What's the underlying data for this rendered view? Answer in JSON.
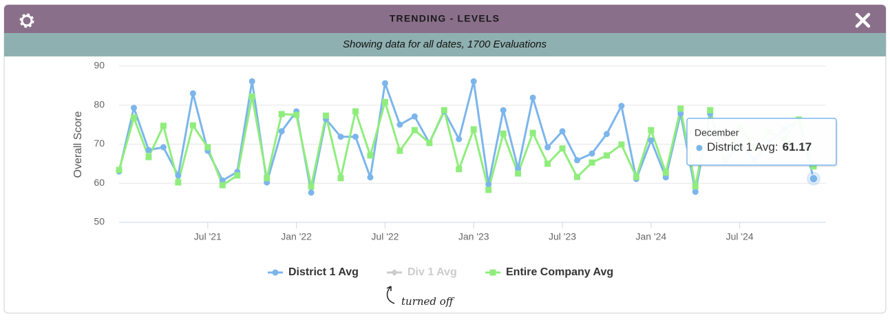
{
  "header": {
    "title": "TRENDING - LEVELS",
    "subtitle": "Showing data for all dates, 1700 Evaluations"
  },
  "chart_data": {
    "type": "line",
    "y_label": "Overall Score",
    "x": [
      "2021-01",
      "2021-02",
      "2021-03",
      "2021-04",
      "2021-05",
      "2021-06",
      "2021-07",
      "2021-08",
      "2021-09",
      "2021-10",
      "2021-11",
      "2021-12",
      "2022-01",
      "2022-02",
      "2022-03",
      "2022-04",
      "2022-05",
      "2022-06",
      "2022-07",
      "2022-08",
      "2022-09",
      "2022-10",
      "2022-11",
      "2022-12",
      "2023-01",
      "2023-02",
      "2023-03",
      "2023-04",
      "2023-05",
      "2023-06",
      "2023-07",
      "2023-08",
      "2023-09",
      "2023-10",
      "2023-11",
      "2023-12",
      "2024-01",
      "2024-02",
      "2024-03",
      "2024-04",
      "2024-05",
      "2024-06",
      "2024-07",
      "2024-08",
      "2024-09",
      "2024-10",
      "2024-11",
      "2024-12"
    ],
    "xlim": [
      "2021-01",
      "2024-12"
    ],
    "xticks": [
      {
        "value": "2021-07",
        "label": "Jul '21"
      },
      {
        "value": "2022-01",
        "label": "Jan '22"
      },
      {
        "value": "2022-07",
        "label": "Jul '22"
      },
      {
        "value": "2023-01",
        "label": "Jan '23"
      },
      {
        "value": "2023-07",
        "label": "Jul '23"
      },
      {
        "value": "2024-01",
        "label": "Jan '24"
      },
      {
        "value": "2024-07",
        "label": "Jul '24"
      }
    ],
    "ylim": [
      50,
      90
    ],
    "yticks": [
      50,
      60,
      70,
      80,
      90
    ],
    "grid": true,
    "series": [
      {
        "name": "District 1 Avg",
        "color": "#7cb5ec",
        "marker": "circle",
        "visible": true,
        "values": [
          63.0,
          79.3,
          68.5,
          69.2,
          62.0,
          83.0,
          68.3,
          60.7,
          62.9,
          86.1,
          60.2,
          73.3,
          78.4,
          57.6,
          76.4,
          71.9,
          71.9,
          61.5,
          85.6,
          75.0,
          77.1,
          70.3,
          78.4,
          71.3,
          86.1,
          59.7,
          78.7,
          63.7,
          81.9,
          69.2,
          73.3,
          65.9,
          67.6,
          72.6,
          79.8,
          61.1,
          71.0,
          61.5,
          77.8,
          57.8,
          77.8,
          65.3,
          70.0,
          66.0,
          70.4,
          73.8,
          76.1,
          61.17
        ]
      },
      {
        "name": "Div 1 Avg",
        "color": "#cccccc",
        "marker": "diamond",
        "visible": false
      },
      {
        "name": "Entire Company Avg",
        "color": "#90ed7d",
        "marker": "square",
        "visible": true,
        "values": [
          63.4,
          76.8,
          66.7,
          74.7,
          60.2,
          74.8,
          69.2,
          59.5,
          62.0,
          82.2,
          61.3,
          77.7,
          77.5,
          59.2,
          77.3,
          61.3,
          78.4,
          67.1,
          80.8,
          68.3,
          73.6,
          70.3,
          78.7,
          63.6,
          73.8,
          58.3,
          72.7,
          62.5,
          72.9,
          65.0,
          68.9,
          61.6,
          65.3,
          67.1,
          69.9,
          61.6,
          73.6,
          62.7,
          79.1,
          59.2,
          78.7,
          66.0,
          74.1,
          69.0,
          73.1,
          71.3,
          76.3,
          64.3
        ]
      }
    ],
    "tooltip": {
      "header": "December",
      "label": "District 1 Avg:"
    },
    "annotation": "turned off"
  }
}
